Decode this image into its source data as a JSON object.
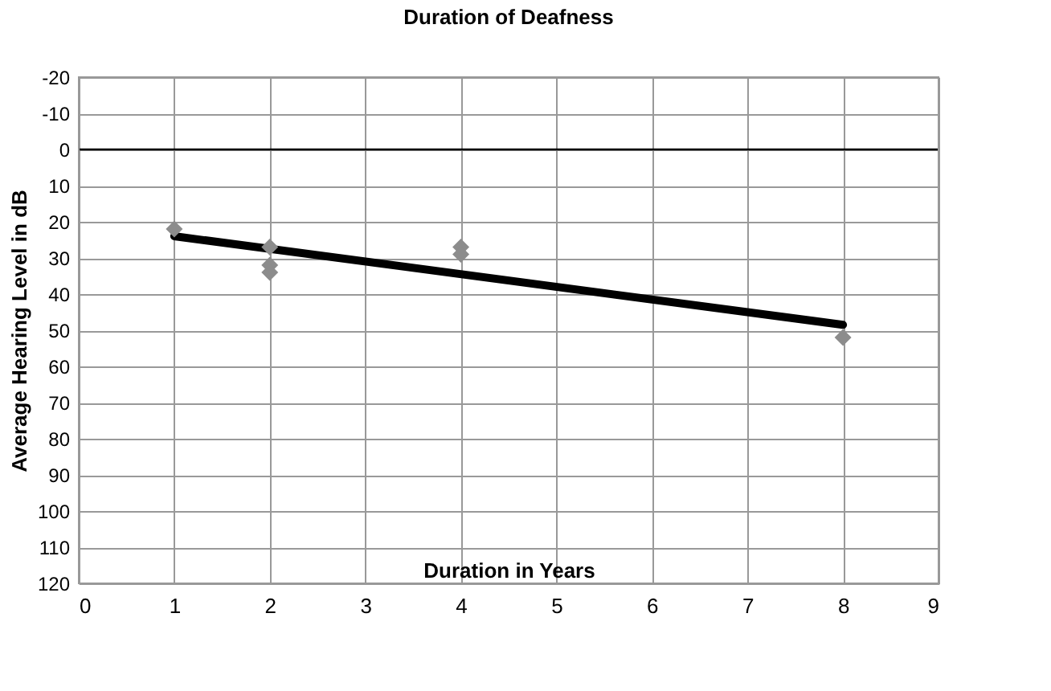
{
  "chart_data": {
    "type": "scatter",
    "title": "Duration of Deafness",
    "xlabel": "Duration in Years",
    "ylabel": "Average Hearing Level  in dB",
    "series": [
      {
        "type": "scatter",
        "color": "#8c8c8c",
        "marker": "diamond",
        "x": [
          1,
          2,
          2,
          2,
          4,
          4,
          8
        ],
        "values": [
          22,
          27,
          32,
          34,
          27,
          29,
          52
        ]
      },
      {
        "type": "line",
        "color": "#000000",
        "marker": "none",
        "line_style": "solid",
        "x": [
          1,
          8
        ],
        "values": [
          24,
          48.5
        ]
      }
    ],
    "xlim": [
      0,
      9
    ],
    "xticks": [
      0,
      1,
      2,
      3,
      4,
      5,
      6,
      7,
      8,
      9
    ],
    "ylim": [
      120,
      -20
    ],
    "yticks": [
      -20,
      -10,
      0,
      10,
      20,
      30,
      40,
      50,
      60,
      70,
      80,
      90,
      100,
      110,
      120
    ],
    "ref_lines": [
      {
        "axis": "y",
        "value": 0,
        "color": "#000000"
      }
    ],
    "grid": true
  }
}
